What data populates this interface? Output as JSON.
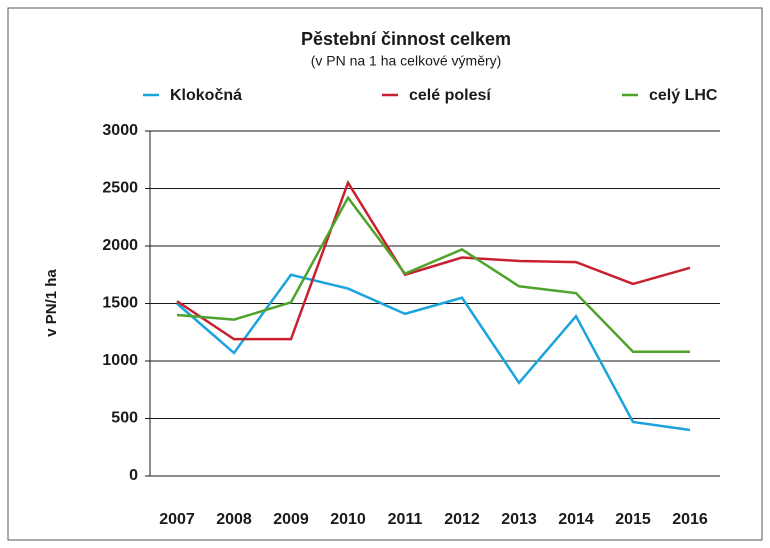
{
  "chart_data": {
    "type": "line",
    "title": "Pěstební činnost celkem",
    "subtitle": "(v PN na 1 ha celkové výměry)",
    "ylabel": "v PN/1 ha",
    "categories": [
      "2007",
      "2008",
      "2009",
      "2010",
      "2011",
      "2012",
      "2013",
      "2014",
      "2015",
      "2016"
    ],
    "series": [
      {
        "name": "Klokočná",
        "color": "#1ba3dc",
        "values": [
          1500,
          1070,
          1750,
          1630,
          1410,
          1550,
          810,
          1390,
          470,
          400
        ]
      },
      {
        "name": "celé polesí",
        "color": "#c8202f",
        "values": [
          1520,
          1190,
          1190,
          2550,
          1750,
          1900,
          1870,
          1860,
          1670,
          1810
        ]
      },
      {
        "name": "celý LHC",
        "color": "#4ea32a",
        "values": [
          1400,
          1360,
          1510,
          2420,
          1760,
          1970,
          1650,
          1590,
          1080,
          1080
        ]
      }
    ],
    "ylim": [
      0,
      3000
    ],
    "yticks": [
      0,
      500,
      1000,
      1500,
      2000,
      2500,
      3000
    ],
    "grid": true,
    "legend": "top"
  }
}
